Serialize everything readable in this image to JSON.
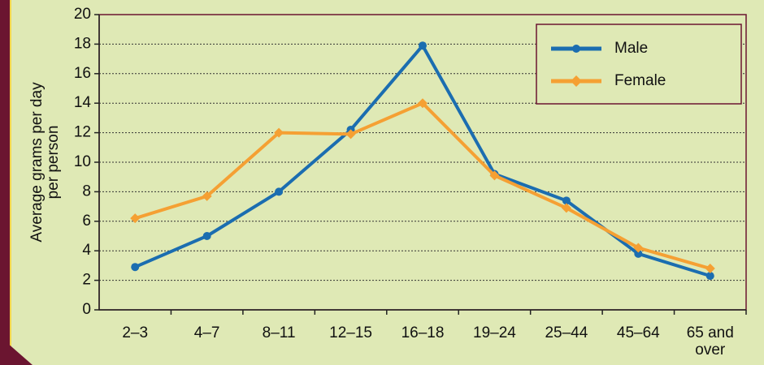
{
  "chart_data": {
    "type": "line",
    "ylabel": [
      "Average grams per day",
      "per person"
    ],
    "categories": [
      "2–3",
      "4–7",
      "8–11",
      "12–15",
      "16–18",
      "19–24",
      "25–44",
      "45–64",
      "65 and over"
    ],
    "series": [
      {
        "name": "Male",
        "color": "#1b6db0",
        "marker": "circle",
        "values": [
          2.9,
          5.0,
          8.0,
          12.2,
          17.9,
          9.2,
          7.4,
          3.8,
          2.3
        ]
      },
      {
        "name": "Female",
        "color": "#f5a033",
        "marker": "diamond",
        "values": [
          6.2,
          7.7,
          12.0,
          11.9,
          14.0,
          9.1,
          6.9,
          4.2,
          2.8
        ]
      }
    ],
    "ylim": [
      0,
      20
    ],
    "yticks": [
      0,
      2,
      4,
      6,
      8,
      10,
      12,
      14,
      16,
      18,
      20
    ],
    "grid": true,
    "legend": "upper right"
  }
}
